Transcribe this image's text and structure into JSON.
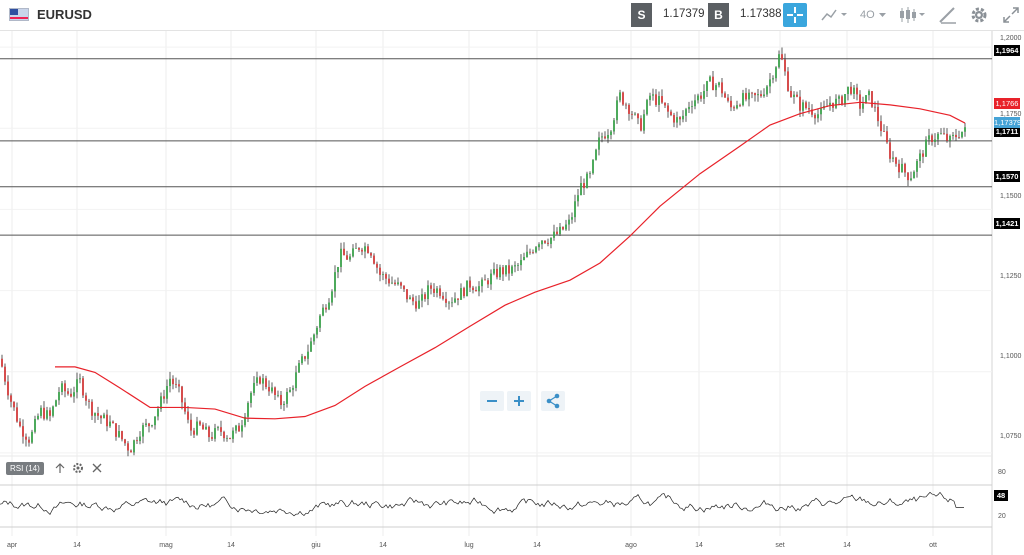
{
  "symbol": "EURUSD",
  "toolbar": {
    "sell_label": "S",
    "sell_price": "1.17379",
    "buy_label": "B",
    "buy_price": "1.17388",
    "period_label": "4O"
  },
  "price_axis": {
    "ticks": [
      "1,2000",
      "1,1750",
      "1,1500",
      "1,1250",
      "1,1000",
      "1,0750"
    ]
  },
  "hlines": [
    "1,1964",
    "1,1711",
    "1,1570",
    "1,1421"
  ],
  "price_tags": {
    "ma_value": "1,1766",
    "last_price": "1,17379",
    "ma_color": "#e8222a",
    "last_color": "#45a3d6"
  },
  "indicator": {
    "name": "RSI (14)",
    "levels": [
      "80",
      "20"
    ],
    "current": "48"
  },
  "time_axis": {
    "labels": [
      "apr",
      "14",
      "mag",
      "14",
      "giu",
      "14",
      "lug",
      "14",
      "ago",
      "14",
      "set",
      "14",
      "ott"
    ]
  },
  "chart_data": {
    "type": "candlestick",
    "ylim": [
      1.0725,
      1.2025
    ],
    "moving_average_color": "#e8222a",
    "horizontal_levels": [
      1.1964,
      1.1711,
      1.157,
      1.1421
    ],
    "close_path": [
      [
        0,
        1.104
      ],
      [
        10,
        1.092
      ],
      [
        20,
        1.083
      ],
      [
        30,
        1.079
      ],
      [
        40,
        1.088
      ],
      [
        50,
        1.086
      ],
      [
        60,
        1.095
      ],
      [
        70,
        1.093
      ],
      [
        80,
        1.097
      ],
      [
        90,
        1.089
      ],
      [
        100,
        1.086
      ],
      [
        110,
        1.084
      ],
      [
        120,
        1.08
      ],
      [
        130,
        1.076
      ],
      [
        140,
        1.082
      ],
      [
        150,
        1.084
      ],
      [
        160,
        1.09
      ],
      [
        170,
        1.098
      ],
      [
        180,
        1.093
      ],
      [
        190,
        1.082
      ],
      [
        200,
        1.083
      ],
      [
        210,
        1.08
      ],
      [
        220,
        1.082
      ],
      [
        230,
        1.08
      ],
      [
        240,
        1.083
      ],
      [
        250,
        1.093
      ],
      [
        260,
        1.098
      ],
      [
        270,
        1.095
      ],
      [
        280,
        1.09
      ],
      [
        290,
        1.094
      ],
      [
        300,
        1.102
      ],
      [
        310,
        1.108
      ],
      [
        320,
        1.117
      ],
      [
        330,
        1.124
      ],
      [
        340,
        1.136
      ],
      [
        350,
        1.135
      ],
      [
        360,
        1.139
      ],
      [
        370,
        1.138
      ],
      [
        380,
        1.13
      ],
      [
        390,
        1.128
      ],
      [
        400,
        1.126
      ],
      [
        410,
        1.122
      ],
      [
        420,
        1.121
      ],
      [
        430,
        1.126
      ],
      [
        440,
        1.125
      ],
      [
        450,
        1.122
      ],
      [
        460,
        1.124
      ],
      [
        470,
        1.127
      ],
      [
        480,
        1.126
      ],
      [
        490,
        1.129
      ],
      [
        500,
        1.131
      ],
      [
        510,
        1.131
      ],
      [
        520,
        1.133
      ],
      [
        530,
        1.137
      ],
      [
        540,
        1.141
      ],
      [
        550,
        1.141
      ],
      [
        560,
        1.143
      ],
      [
        570,
        1.146
      ],
      [
        580,
        1.157
      ],
      [
        590,
        1.16
      ],
      [
        600,
        1.172
      ],
      [
        610,
        1.175
      ],
      [
        620,
        1.185
      ],
      [
        630,
        1.181
      ],
      [
        640,
        1.175
      ],
      [
        650,
        1.185
      ],
      [
        660,
        1.183
      ],
      [
        670,
        1.179
      ],
      [
        680,
        1.177
      ],
      [
        690,
        1.183
      ],
      [
        700,
        1.185
      ],
      [
        710,
        1.189
      ],
      [
        720,
        1.188
      ],
      [
        730,
        1.181
      ],
      [
        740,
        1.184
      ],
      [
        750,
        1.184
      ],
      [
        760,
        1.185
      ],
      [
        770,
        1.19
      ],
      [
        780,
        1.198
      ],
      [
        790,
        1.186
      ],
      [
        800,
        1.182
      ],
      [
        810,
        1.181
      ],
      [
        820,
        1.179
      ],
      [
        830,
        1.183
      ],
      [
        840,
        1.183
      ],
      [
        850,
        1.188
      ],
      [
        860,
        1.182
      ],
      [
        870,
        1.185
      ],
      [
        880,
        1.176
      ],
      [
        890,
        1.167
      ],
      [
        900,
        1.163
      ],
      [
        910,
        1.16
      ],
      [
        920,
        1.166
      ],
      [
        930,
        1.172
      ],
      [
        940,
        1.173
      ],
      [
        950,
        1.171
      ],
      [
        960,
        1.174
      ],
      [
        965,
        1.174
      ]
    ],
    "ma_path": [
      [
        55,
        1.1015
      ],
      [
        75,
        1.1015
      ],
      [
        95,
        1.0998
      ],
      [
        120,
        1.095
      ],
      [
        150,
        1.089
      ],
      [
        185,
        1.089
      ],
      [
        215,
        1.0885
      ],
      [
        245,
        1.0857
      ],
      [
        275,
        1.0855
      ],
      [
        305,
        1.0862
      ],
      [
        335,
        1.0896
      ],
      [
        365,
        1.0955
      ],
      [
        400,
        1.1015
      ],
      [
        435,
        1.1074
      ],
      [
        470,
        1.114
      ],
      [
        505,
        1.1205
      ],
      [
        535,
        1.1245
      ],
      [
        570,
        1.1282
      ],
      [
        600,
        1.1335
      ],
      [
        630,
        1.1418
      ],
      [
        660,
        1.151
      ],
      [
        700,
        1.161
      ],
      [
        740,
        1.1695
      ],
      [
        770,
        1.176
      ],
      [
        800,
        1.1795
      ],
      [
        830,
        1.182
      ],
      [
        860,
        1.183
      ],
      [
        890,
        1.1822
      ],
      [
        920,
        1.181
      ],
      [
        950,
        1.179
      ],
      [
        965,
        1.1766
      ]
    ],
    "rsi": {
      "ylim": [
        0,
        100
      ],
      "levels": [
        20,
        80
      ],
      "current": 48
    }
  }
}
